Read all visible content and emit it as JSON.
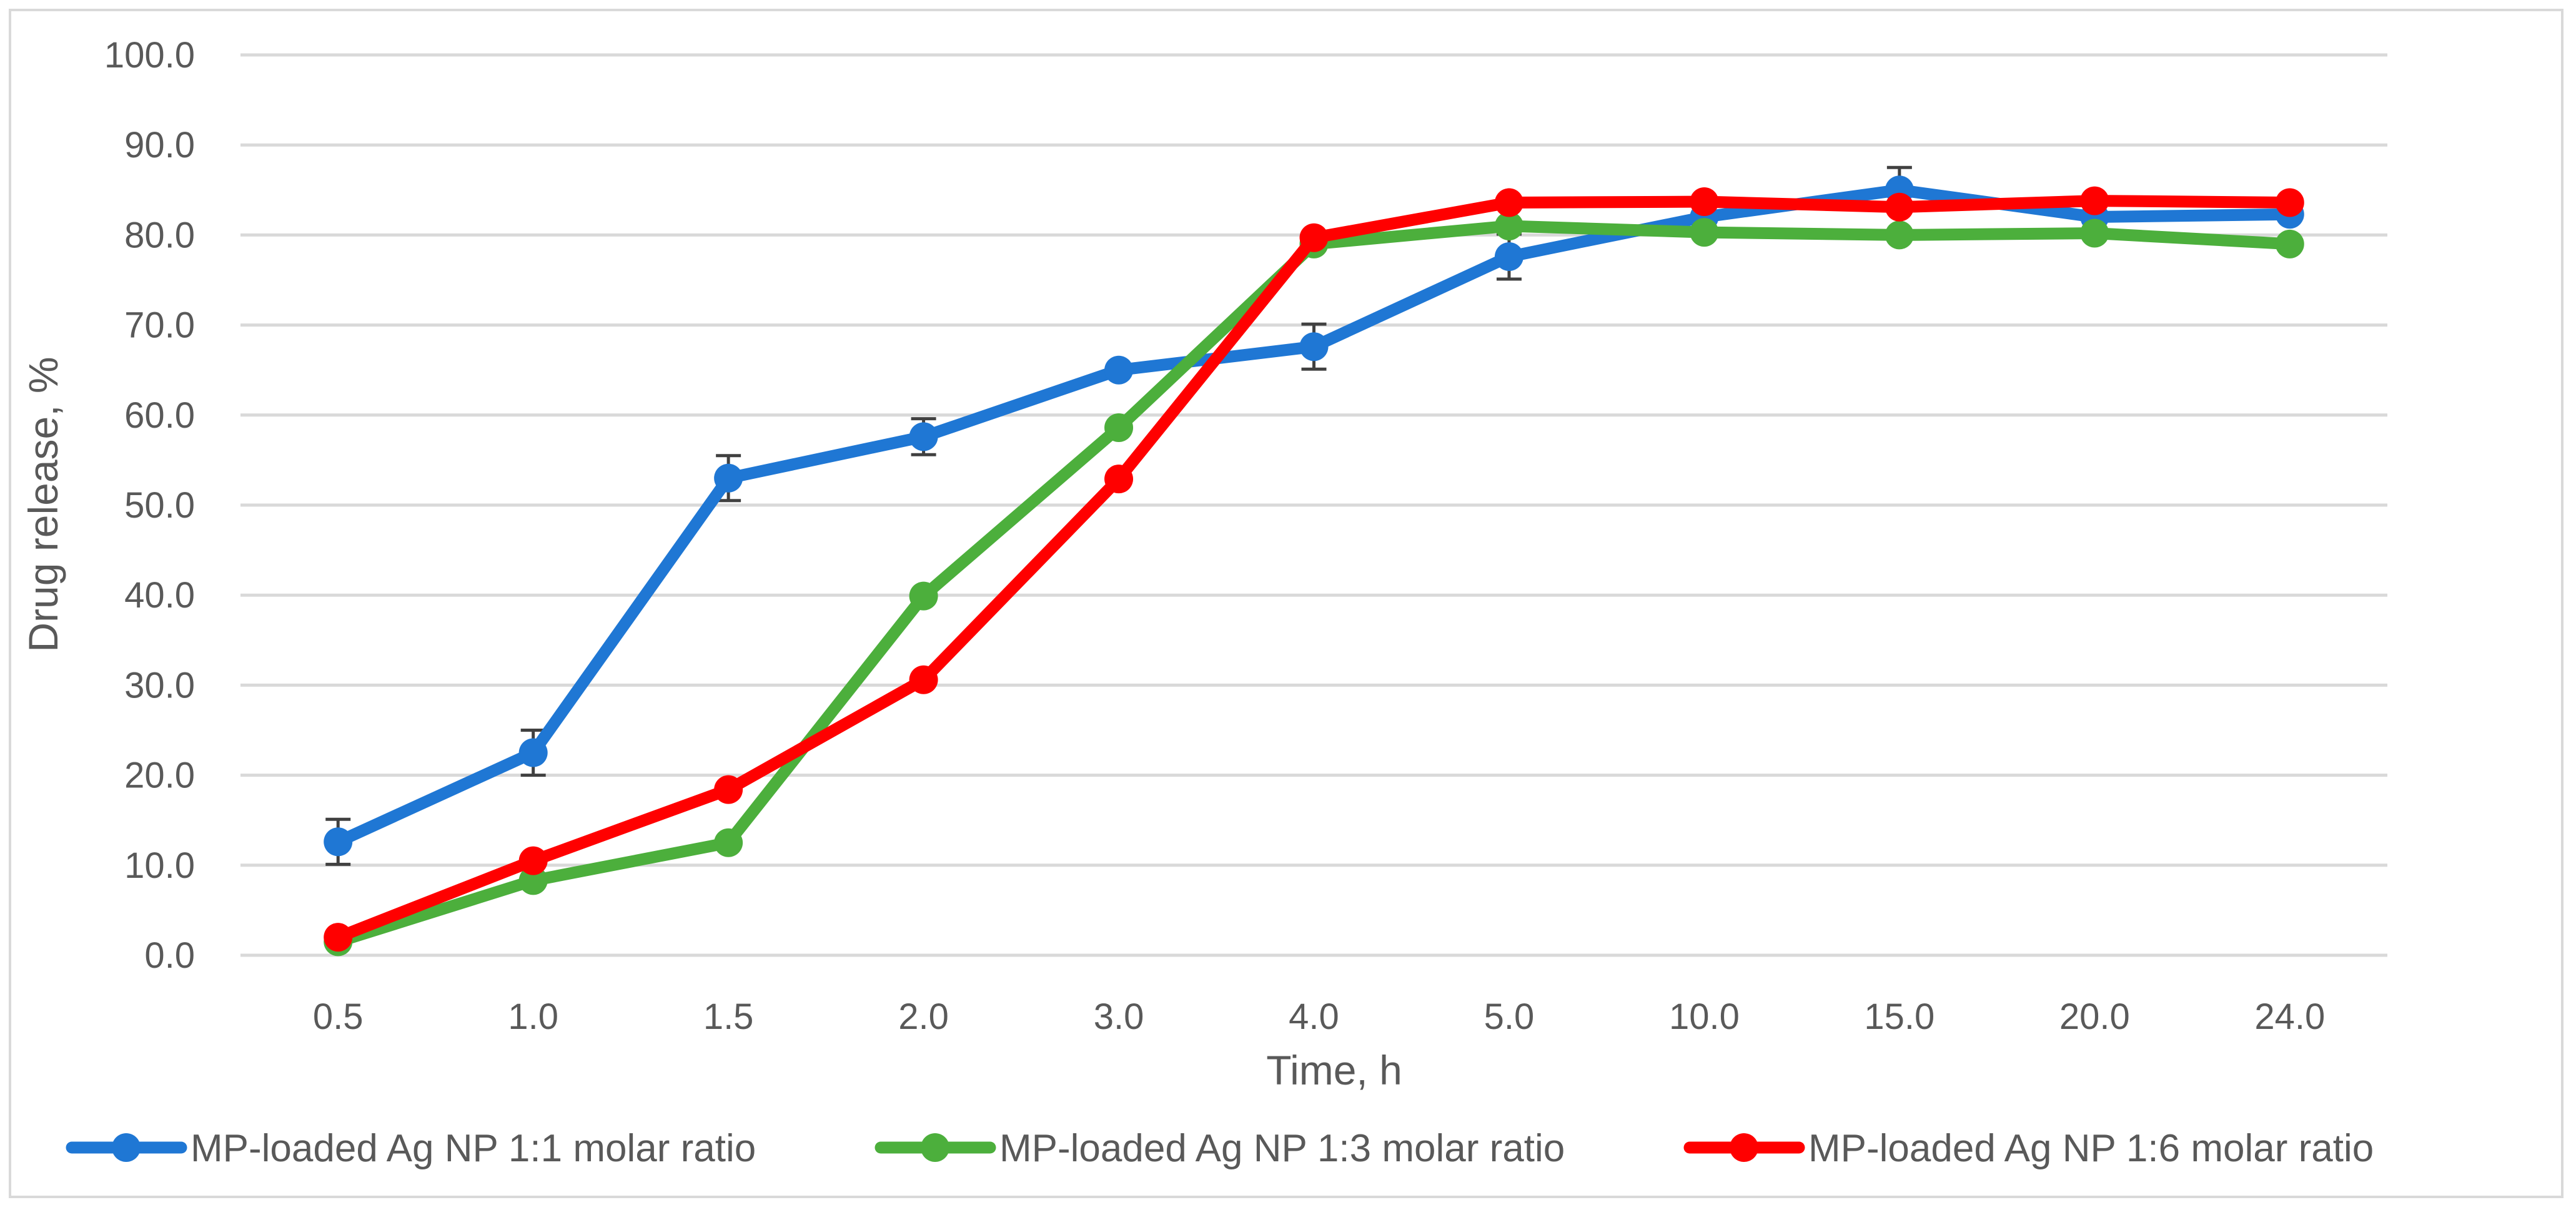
{
  "chart_data": {
    "type": "line",
    "title": "",
    "xlabel": "Time, h",
    "ylabel": "Drug release, %",
    "categories": [
      "0.5",
      "1.0",
      "1.5",
      "2.0",
      "3.0",
      "4.0",
      "5.0",
      "10.0",
      "15.0",
      "20.0",
      "24.0"
    ],
    "ylim": [
      0,
      100
    ],
    "yticks": [
      "0.0",
      "10.0",
      "20.0",
      "30.0",
      "40.0",
      "50.0",
      "60.0",
      "70.0",
      "80.0",
      "90.0",
      "100.0"
    ],
    "grid": true,
    "legend_position": "bottom",
    "series": [
      {
        "name": "MP-loaded Ag NP 1:1 molar ratio",
        "color": "#1f77d4",
        "values": [
          12.6,
          22.5,
          53.0,
          57.6,
          65.0,
          67.6,
          77.6,
          82.0,
          85.0,
          82.0,
          82.3
        ],
        "errors": [
          2.5,
          2.5,
          2.5,
          2.0,
          0.5,
          2.5,
          2.5,
          0.5,
          2.5,
          0.5,
          0.5
        ]
      },
      {
        "name": "MP-loaded Ag NP 1:3 molar ratio",
        "color": "#4caf3c",
        "values": [
          1.5,
          8.3,
          12.5,
          39.9,
          58.6,
          79.0,
          81.0,
          80.3,
          80.0,
          80.2,
          79.0
        ],
        "errors": [
          0,
          0,
          0,
          0,
          0,
          0,
          0,
          0,
          0,
          0,
          0
        ]
      },
      {
        "name": "MP-loaded Ag NP 1:6 molar ratio",
        "color": "#ff0000",
        "values": [
          2.0,
          10.5,
          18.4,
          30.6,
          52.9,
          79.7,
          83.6,
          83.7,
          83.1,
          83.8,
          83.6
        ],
        "errors": [
          0,
          0,
          0,
          0,
          0,
          0,
          0,
          0,
          0,
          0,
          0
        ]
      }
    ]
  }
}
